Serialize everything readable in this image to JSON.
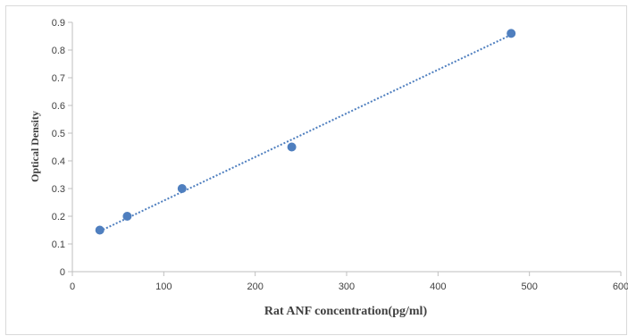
{
  "chart_data": {
    "type": "scatter",
    "title": "",
    "xlabel": "Rat ANF concentration(pg/ml)",
    "ylabel": "Optical Density",
    "xlim": [
      0,
      600
    ],
    "ylim": [
      0,
      0.9
    ],
    "x_ticks": [
      "0",
      "100",
      "200",
      "300",
      "400",
      "500",
      "600"
    ],
    "y_ticks": [
      "0",
      "0.1",
      "0.2",
      "0.3",
      "0.4",
      "0.5",
      "0.6",
      "0.7",
      "0.8",
      "0.9"
    ],
    "series": [
      {
        "points": [
          {
            "x": 30,
            "y": 0.15
          },
          {
            "x": 60,
            "y": 0.2
          },
          {
            "x": 120,
            "y": 0.3
          },
          {
            "x": 240,
            "y": 0.45
          },
          {
            "x": 480,
            "y": 0.86
          }
        ],
        "color": "#4f7fbf",
        "trendline": {
          "style": "dotted",
          "color": "#4f7fbf",
          "from": {
            "x": 30,
            "y": 0.146
          },
          "to": {
            "x": 480,
            "y": 0.855
          }
        }
      }
    ],
    "grid": false,
    "legend": "none"
  }
}
